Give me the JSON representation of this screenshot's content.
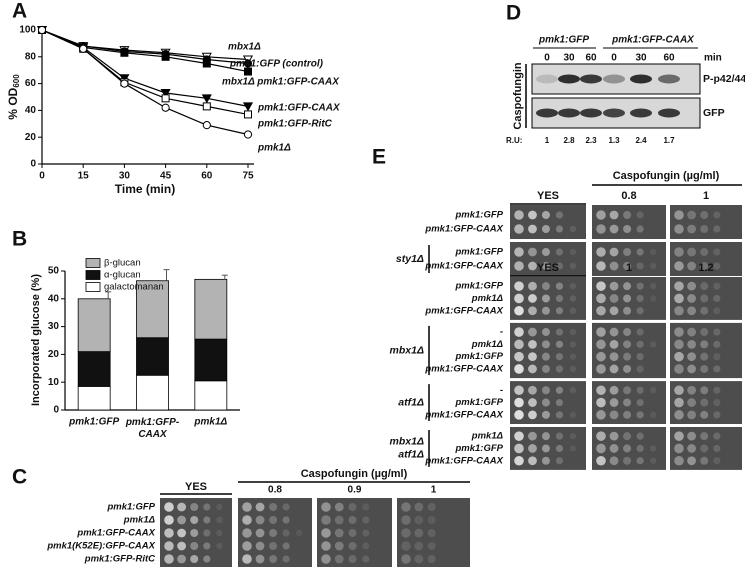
{
  "panel_labels": [
    "A",
    "B",
    "C",
    "D",
    "E"
  ],
  "chart_data": [
    {
      "type": "line",
      "x_label": "Time (min)",
      "y_label": {
        "text": "% OD",
        "subscript": "600"
      },
      "x": [
        0,
        15,
        30,
        45,
        60,
        75
      ],
      "xlim": [
        0,
        75
      ],
      "xticks": [
        0,
        15,
        30,
        45,
        60,
        75
      ],
      "ylim": [
        0,
        100
      ],
      "yticks": [
        0,
        20,
        40,
        60,
        80,
        100
      ],
      "series": [
        {
          "name": "mbx1Δ",
          "color": "#000000",
          "marker": "triangle-down-open",
          "values": [
            100,
            88,
            85,
            83,
            80,
            78
          ]
        },
        {
          "name": "pmk1:GFP (control)",
          "color": "#000000",
          "marker": "circle-filled",
          "values": [
            100,
            88,
            84,
            82,
            78,
            75
          ]
        },
        {
          "name": "mbx1Δ  pmk1:GFP-CAAX",
          "color": "#000000",
          "marker": "square-filled",
          "values": [
            100,
            87,
            83,
            80,
            75,
            69
          ]
        },
        {
          "name": "pmk1:GFP-CAAX",
          "color": "#000000",
          "marker": "triangle-down-filled",
          "values": [
            100,
            87,
            64,
            53,
            49,
            43
          ]
        },
        {
          "name": "pmk1:GFP-RitC",
          "color": "#000000",
          "marker": "square-open",
          "values": [
            100,
            86,
            61,
            49,
            43,
            37
          ]
        },
        {
          "name": "pmk1Δ",
          "color": "#000000",
          "marker": "circle-open",
          "values": [
            100,
            86,
            60,
            42,
            29,
            22
          ]
        }
      ]
    },
    {
      "type": "stacked-bar",
      "y_label": "Incorporated glucose (%)",
      "categories": [
        "pmk1:GFP",
        "pmk1:GFP-\nCAAX",
        "pmk1Δ"
      ],
      "ylim": [
        0,
        50
      ],
      "yticks": [
        0,
        10,
        20,
        30,
        40,
        50
      ],
      "series": [
        {
          "name": "galactomanan",
          "color": "#ffffff",
          "values": [
            8.5,
            12.5,
            10.5
          ]
        },
        {
          "name": "α-glucan",
          "color": "#111111",
          "values": [
            12.5,
            13.5,
            15
          ]
        },
        {
          "name": "β-glucan",
          "color": "#b3b3b3",
          "values": [
            19,
            20.5,
            21.5
          ],
          "errors": [
            2.5,
            4,
            1.5
          ]
        }
      ]
    }
  ],
  "panel_c": {
    "yes_label": "YES",
    "treatment": "Caspofungin (µg/ml)",
    "concentrations": [
      "0.8",
      "0.9",
      "1"
    ],
    "strains": [
      "pmk1:GFP",
      "pmk1Δ",
      "pmk1:GFP-CAAX",
      "pmk1(K52E):GFP-CAAX",
      "pmk1:GFP-RitC"
    ]
  },
  "panel_d": {
    "groups": [
      "pmk1:GFP",
      "pmk1:GFP-CAAX"
    ],
    "times": [
      0,
      30,
      60,
      0,
      30,
      60
    ],
    "time_unit": "min",
    "treatment": "Caspofungin",
    "bands": [
      "P-p42/44",
      "GFP"
    ],
    "ru_label": "R.U:",
    "ru_values": [
      1,
      2.8,
      2.3,
      1.3,
      2.4,
      1.7
    ]
  },
  "panel_e": {
    "treatment": "Caspofungin (µg/ml)",
    "blocks": [
      {
        "yes_label": "YES",
        "concentrations": [
          "0.8",
          "1"
        ],
        "sections": [
          {
            "rows": [
              "pmk1:GFP",
              "pmk1:GFP-CAAX"
            ]
          },
          {
            "background": [
              "sty1Δ"
            ],
            "rows": [
              "pmk1:GFP",
              "pmk1:GFP-CAAX"
            ]
          }
        ]
      },
      {
        "yes_label": "YES",
        "concentrations": [
          "1",
          "1.2"
        ],
        "sections": [
          {
            "rows": [
              "pmk1:GFP",
              "pmk1Δ",
              "pmk1:GFP-CAAX"
            ]
          },
          {
            "background": [
              "mbx1Δ"
            ],
            "rows": [
              "-",
              "pmk1Δ",
              "pmk1:GFP",
              "pmk1:GFP-CAAX"
            ]
          },
          {
            "background": [
              "atf1Δ"
            ],
            "rows": [
              "-",
              "pmk1:GFP",
              "pmk1:GFP-CAAX"
            ]
          },
          {
            "background": [
              "mbx1Δ",
              "atf1Δ"
            ],
            "rows": [
              "pmk1Δ",
              "pmk1:GFP",
              "pmk1:GFP-CAAX"
            ]
          }
        ]
      }
    ]
  }
}
